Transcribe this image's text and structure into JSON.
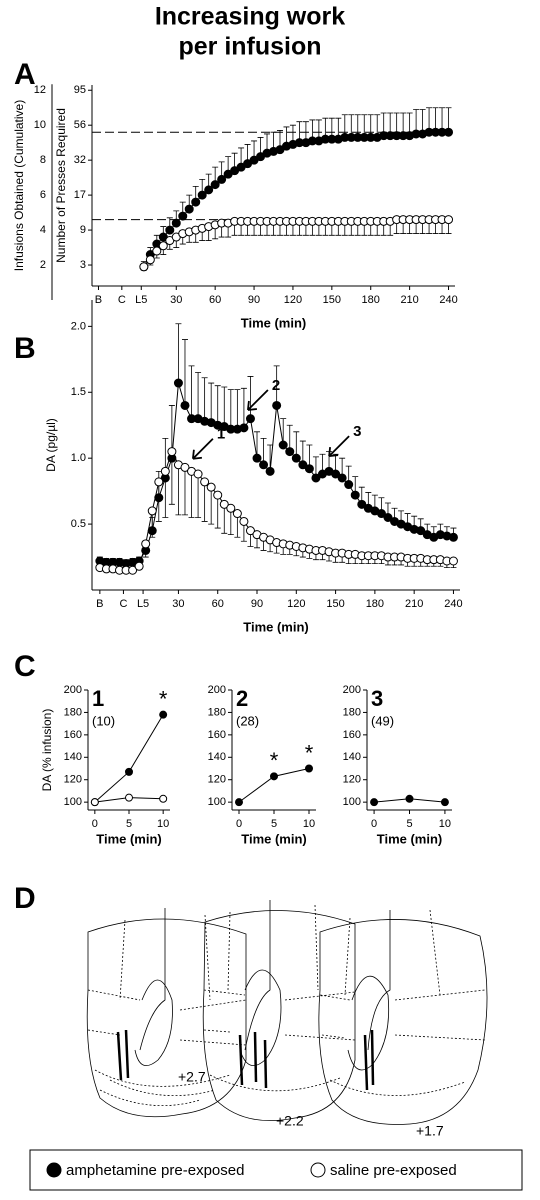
{
  "title_lines": [
    "Increasing work",
    "per infusion"
  ],
  "panel_labels": [
    "A",
    "B",
    "C",
    "D"
  ],
  "chart_data": [
    {
      "type": "line",
      "y_label": "Infusions Obtained (Cumulative)",
      "y_label_inner": "Number of Presses Required",
      "x_label": "Time (min)",
      "xlim": [
        -35,
        245
      ],
      "ylim": [
        0.8,
        12.3
      ],
      "xticks": [
        {
          "value": -30,
          "label": "B"
        },
        {
          "value": -12,
          "label": "C"
        },
        {
          "value": 3,
          "label": "L5"
        },
        30,
        60,
        90,
        120,
        150,
        180,
        210,
        240
      ],
      "yticks": [
        2,
        4,
        6,
        8,
        10,
        12
      ],
      "inner_ticks": [
        {
          "value": 2,
          "label": "3"
        },
        {
          "value": 4,
          "label": "9"
        },
        {
          "value": 6,
          "label": "17"
        },
        {
          "value": 8,
          "label": "32"
        },
        {
          "value": 10,
          "label": "56"
        },
        {
          "value": 12,
          "label": "95"
        }
      ],
      "reference_lines": [
        9.6,
        4.6
      ],
      "x": [
        5,
        10,
        15,
        20,
        25,
        30,
        35,
        40,
        45,
        50,
        55,
        60,
        65,
        70,
        75,
        80,
        85,
        90,
        95,
        100,
        105,
        110,
        115,
        120,
        125,
        130,
        135,
        140,
        145,
        150,
        155,
        160,
        165,
        170,
        175,
        180,
        185,
        190,
        195,
        200,
        205,
        210,
        215,
        220,
        225,
        230,
        235,
        240
      ],
      "series": [
        {
          "name": "amphetamine pre-exposed",
          "color": "#000000",
          "values": [
            1.9,
            2.6,
            3.2,
            3.6,
            4.0,
            4.4,
            4.8,
            5.2,
            5.6,
            6.0,
            6.3,
            6.6,
            6.9,
            7.2,
            7.4,
            7.6,
            7.8,
            8.0,
            8.2,
            8.4,
            8.5,
            8.6,
            8.8,
            8.9,
            9.0,
            9.0,
            9.1,
            9.1,
            9.2,
            9.2,
            9.2,
            9.3,
            9.3,
            9.3,
            9.3,
            9.3,
            9.3,
            9.4,
            9.4,
            9.4,
            9.4,
            9.4,
            9.5,
            9.5,
            9.6,
            9.6,
            9.6,
            9.6
          ],
          "errors": [
            0.3,
            0.4,
            0.5,
            0.6,
            0.7,
            0.7,
            0.8,
            0.8,
            0.9,
            0.9,
            0.9,
            1.0,
            1.0,
            1.0,
            1.0,
            1.1,
            1.1,
            1.1,
            1.1,
            1.1,
            1.1,
            1.1,
            1.1,
            1.1,
            1.2,
            1.2,
            1.2,
            1.2,
            1.2,
            1.2,
            1.2,
            1.3,
            1.3,
            1.3,
            1.3,
            1.3,
            1.3,
            1.3,
            1.3,
            1.3,
            1.3,
            1.3,
            1.4,
            1.4,
            1.4,
            1.4,
            1.4,
            1.4
          ]
        },
        {
          "name": "saline pre-exposed",
          "color": "#ffffff",
          "values": [
            1.9,
            2.3,
            2.8,
            3.1,
            3.4,
            3.6,
            3.8,
            3.9,
            4.0,
            4.1,
            4.2,
            4.3,
            4.4,
            4.4,
            4.5,
            4.5,
            4.5,
            4.5,
            4.5,
            4.5,
            4.5,
            4.5,
            4.5,
            4.5,
            4.5,
            4.5,
            4.5,
            4.5,
            4.5,
            4.5,
            4.5,
            4.5,
            4.5,
            4.5,
            4.5,
            4.5,
            4.5,
            4.5,
            4.5,
            4.6,
            4.6,
            4.6,
            4.6,
            4.6,
            4.6,
            4.6,
            4.6,
            4.6
          ],
          "errors": [
            0.2,
            0.3,
            0.4,
            0.5,
            0.5,
            0.6,
            0.6,
            0.6,
            0.7,
            0.7,
            0.8,
            0.8,
            0.8,
            0.8,
            0.8,
            0.8,
            0.8,
            0.8,
            0.8,
            0.8,
            0.8,
            0.8,
            0.8,
            0.8,
            0.8,
            0.8,
            0.8,
            0.8,
            0.8,
            0.8,
            0.8,
            0.8,
            0.8,
            0.8,
            0.8,
            0.8,
            0.8,
            0.8,
            0.8,
            0.8,
            0.8,
            0.8,
            0.8,
            0.8,
            0.8,
            0.8,
            0.8,
            0.8
          ]
        }
      ]
    },
    {
      "type": "line",
      "y_label": "DA (pg/µl)",
      "x_label": "Time (min)",
      "xlim": [
        -36,
        245
      ],
      "ylim": [
        0,
        2.2
      ],
      "xticks": [
        {
          "value": -30,
          "label": "B"
        },
        {
          "value": -12,
          "label": "C"
        },
        {
          "value": 3,
          "label": "L5"
        },
        30,
        60,
        90,
        120,
        150,
        180,
        210,
        240
      ],
      "yticks": [
        0.5,
        {
          "value": 1,
          "label": "1.0"
        },
        1.5,
        {
          "value": 2,
          "label": "2.0"
        }
      ],
      "annotations": [
        {
          "text": "1",
          "x": 38,
          "y": 0.95
        },
        {
          "text": "2",
          "x": 80,
          "y": 1.32
        },
        {
          "text": "3",
          "x": 142,
          "y": 0.97
        }
      ],
      "x": [
        -30,
        -25,
        -20,
        -15,
        -10,
        -5,
        0,
        5,
        10,
        15,
        20,
        25,
        30,
        35,
        40,
        45,
        50,
        55,
        60,
        65,
        70,
        75,
        80,
        85,
        90,
        95,
        100,
        105,
        110,
        115,
        120,
        125,
        130,
        135,
        140,
        145,
        150,
        155,
        160,
        165,
        170,
        175,
        180,
        185,
        190,
        195,
        200,
        205,
        210,
        215,
        220,
        225,
        230,
        235,
        240
      ],
      "series": [
        {
          "color": "#000000",
          "values": [
            0.22,
            0.21,
            0.21,
            0.21,
            0.2,
            0.21,
            0.22,
            0.3,
            0.45,
            0.7,
            0.85,
            1.0,
            1.57,
            1.4,
            1.3,
            1.3,
            1.28,
            1.27,
            1.25,
            1.24,
            1.22,
            1.22,
            1.23,
            1.3,
            1.0,
            0.95,
            0.9,
            1.4,
            1.1,
            1.05,
            1.0,
            0.95,
            0.92,
            0.85,
            0.88,
            0.9,
            0.88,
            0.85,
            0.8,
            0.72,
            0.65,
            0.62,
            0.6,
            0.58,
            0.55,
            0.52,
            0.5,
            0.48,
            0.46,
            0.45,
            0.42,
            0.4,
            0.42,
            0.41,
            0.4
          ],
          "errors": [
            0.03,
            0.03,
            0.03,
            0.03,
            0.03,
            0.03,
            0.03,
            0.05,
            0.1,
            0.2,
            0.3,
            0.4,
            0.45,
            0.5,
            0.4,
            0.35,
            0.33,
            0.3,
            0.3,
            0.3,
            0.3,
            0.3,
            0.3,
            0.32,
            0.2,
            0.2,
            0.2,
            0.3,
            0.2,
            0.2,
            0.2,
            0.18,
            0.18,
            0.16,
            0.15,
            0.15,
            0.15,
            0.15,
            0.14,
            0.14,
            0.13,
            0.12,
            0.12,
            0.12,
            0.11,
            0.1,
            0.1,
            0.1,
            0.1,
            0.09,
            0.08,
            0.08,
            0.08,
            0.07,
            0.07
          ]
        },
        {
          "color": "#ffffff",
          "values": [
            0.17,
            0.16,
            0.16,
            0.15,
            0.15,
            0.15,
            0.18,
            0.35,
            0.6,
            0.82,
            0.9,
            1.05,
            0.95,
            0.93,
            0.9,
            0.88,
            0.82,
            0.78,
            0.72,
            0.65,
            0.62,
            0.58,
            0.52,
            0.45,
            0.42,
            0.4,
            0.38,
            0.36,
            0.35,
            0.34,
            0.33,
            0.32,
            0.31,
            0.3,
            0.3,
            0.29,
            0.28,
            0.28,
            0.27,
            0.27,
            0.26,
            0.26,
            0.26,
            0.26,
            0.25,
            0.25,
            0.25,
            0.24,
            0.24,
            0.24,
            0.23,
            0.23,
            0.23,
            0.22,
            0.22
          ],
          "errors": [
            0.02,
            0.02,
            0.02,
            0.02,
            0.02,
            0.02,
            0.02,
            0.1,
            0.2,
            0.3,
            0.35,
            0.4,
            0.38,
            0.36,
            0.35,
            0.33,
            0.3,
            0.28,
            0.25,
            0.22,
            0.2,
            0.18,
            0.15,
            0.12,
            0.1,
            0.1,
            0.09,
            0.08,
            0.08,
            0.07,
            0.07,
            0.07,
            0.07,
            0.07,
            0.07,
            0.07,
            0.07,
            0.07,
            0.07,
            0.07,
            0.06,
            0.06,
            0.06,
            0.06,
            0.06,
            0.06,
            0.06,
            0.06,
            0.06,
            0.06,
            0.05,
            0.05,
            0.05,
            0.05,
            0.05
          ]
        }
      ]
    },
    {
      "type": "line",
      "number": "1",
      "n_label": "(10)",
      "y_label": "DA (% infusion)",
      "x_label": "Time (min)",
      "xlim": [
        -1,
        11
      ],
      "ylim": [
        93,
        200
      ],
      "xticks": [
        0,
        5,
        10
      ],
      "yticks": [
        100,
        120,
        140,
        160,
        180,
        200
      ],
      "x": [
        0,
        5,
        10
      ],
      "series": [
        {
          "color": "#000000",
          "values": [
            100,
            127,
            178
          ]
        },
        {
          "color": "#ffffff",
          "values": [
            100,
            104,
            103
          ]
        }
      ],
      "annotations": [
        {
          "text": "*",
          "x": 10,
          "y": 178
        }
      ]
    },
    {
      "type": "line",
      "number": "2",
      "n_label": "(28)",
      "x_label": "Time (min)",
      "xlim": [
        -1,
        11
      ],
      "ylim": [
        93,
        200
      ],
      "xticks": [
        0,
        5,
        10
      ],
      "yticks": [
        100,
        120,
        140,
        160,
        180,
        200
      ],
      "x": [
        0,
        5,
        10
      ],
      "series": [
        {
          "color": "#000000",
          "values": [
            100,
            123,
            130
          ]
        }
      ],
      "annotations": [
        {
          "text": "*",
          "x": 5,
          "y": 123
        },
        {
          "text": "*",
          "x": 10,
          "y": 130
        }
      ]
    },
    {
      "type": "line",
      "number": "3",
      "n_label": "(49)",
      "x_label": "Time (min)",
      "xlim": [
        -1,
        11
      ],
      "ylim": [
        93,
        200
      ],
      "xticks": [
        0,
        5,
        10
      ],
      "yticks": [
        100,
        120,
        140,
        160,
        180,
        200
      ],
      "x": [
        0,
        5,
        10
      ],
      "series": [
        {
          "color": "#000000",
          "values": [
            100,
            103,
            100
          ]
        }
      ]
    }
  ],
  "sections": {
    "labels": [
      "+2.7",
      "+2.2",
      "+1.7"
    ]
  }
}
